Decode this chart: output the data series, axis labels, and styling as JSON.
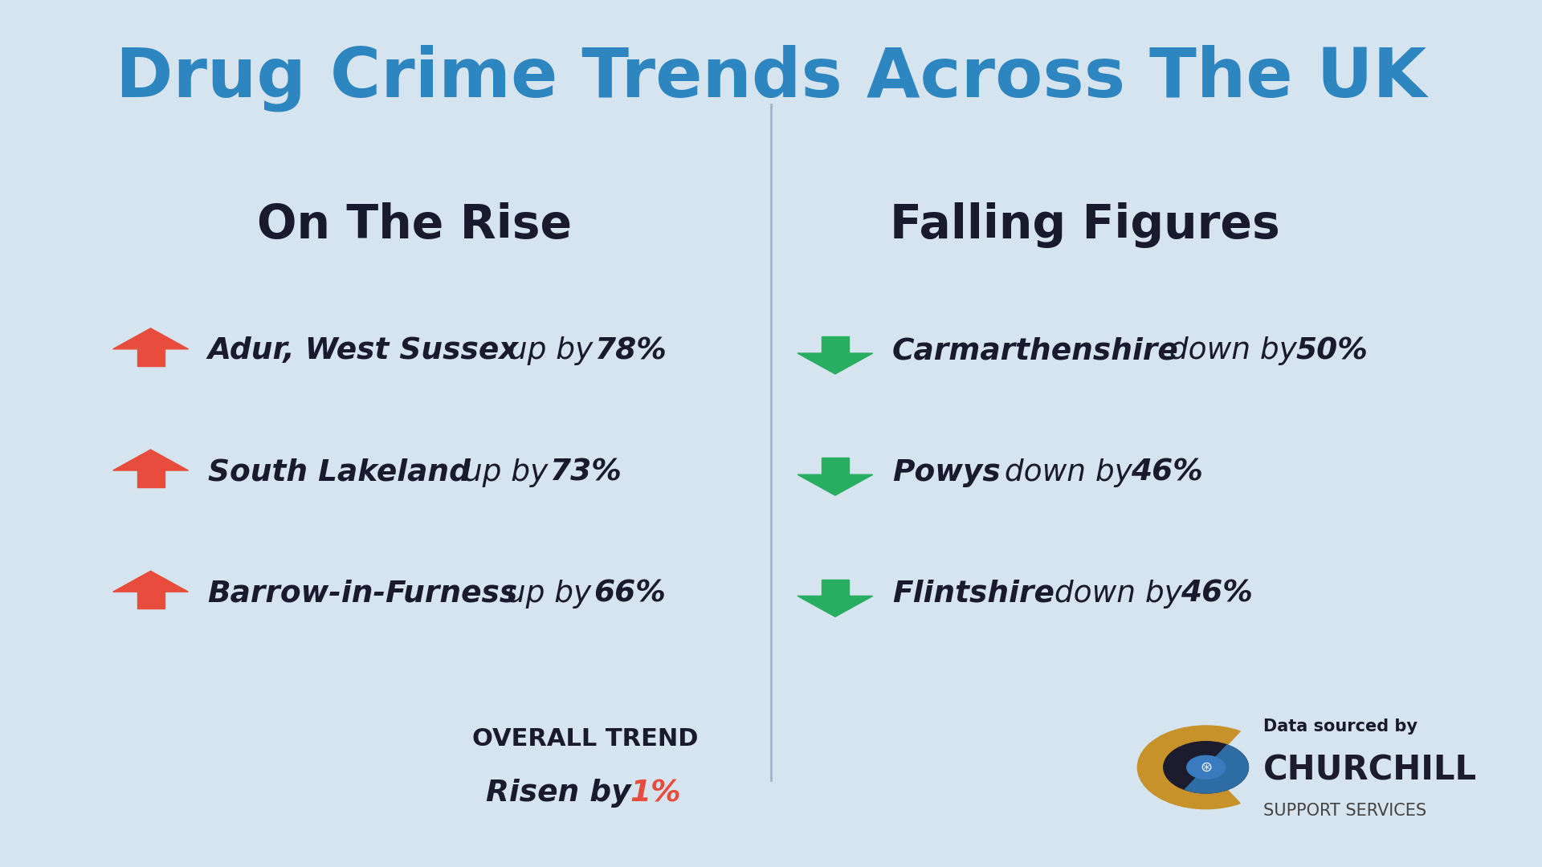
{
  "title": "Drug Crime Trends Across The UK",
  "title_color": "#2E86C1",
  "bg_color": "#D6E4F0",
  "left_header": "On The Rise",
  "right_header": "Falling Figures",
  "rise_items": [
    {
      "place": "Adur, West Sussex",
      "text": " up by ",
      "pct": "78%"
    },
    {
      "place": "South Lakeland",
      "text": " up by ",
      "pct": "73%"
    },
    {
      "place": "Barrow-in-Furness",
      "text": " up by ",
      "pct": "66%"
    }
  ],
  "fall_items": [
    {
      "place": "Carmarthenshire",
      "text": " down by ",
      "pct": "50%"
    },
    {
      "place": "Powys",
      "text": " down by ",
      "pct": "46%"
    },
    {
      "place": "Flintshire",
      "text": " down by ",
      "pct": "46%"
    }
  ],
  "overall_label": "OVERALL TREND",
  "overall_value": "Risen by ",
  "overall_pct": "1%",
  "overall_pct_color": "#E74C3C",
  "data_sourced": "Data sourced by",
  "company": "CHURCHILL",
  "company_sub": "SUPPORT SERVICES",
  "arrow_up_color": "#E74C3C",
  "arrow_down_color": "#27AE60",
  "divider_color": "#A0B4C8",
  "header_color": "#1A1A2E",
  "place_color": "#1A1A2E",
  "text_color": "#1A1A2E"
}
